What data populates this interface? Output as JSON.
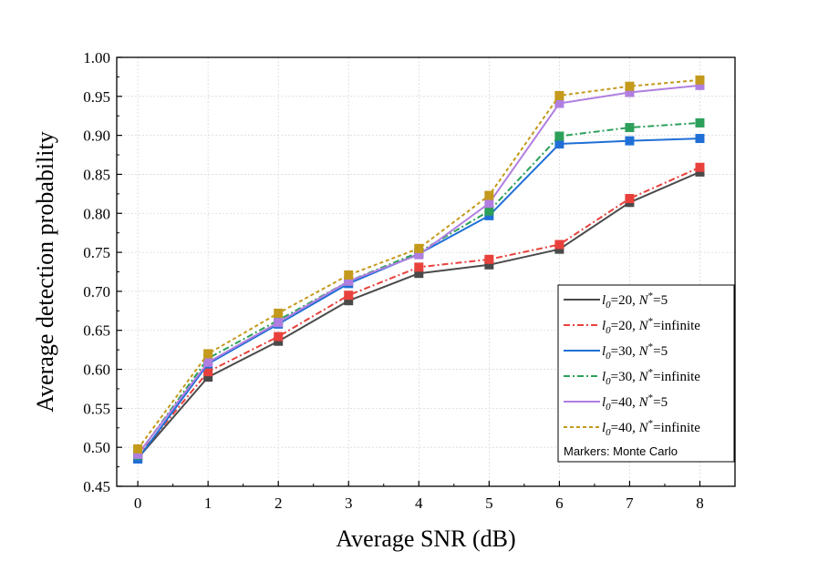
{
  "chart_data": {
    "type": "line",
    "xlabel": "Average SNR (dB)",
    "ylabel": "Average detection probability",
    "xlim": [
      -0.3,
      8.5
    ],
    "ylim": [
      0.45,
      1.0
    ],
    "xticks": [
      "0",
      "1",
      "2",
      "3",
      "4",
      "5",
      "6",
      "7",
      "8"
    ],
    "yticks": [
      "0.45",
      "0.50",
      "0.55",
      "0.60",
      "0.65",
      "0.70",
      "0.75",
      "0.80",
      "0.85",
      "0.90",
      "0.95",
      "1.00"
    ],
    "grid": true,
    "legend_position": "bottom-right",
    "x": [
      0,
      1,
      2,
      3,
      4,
      5,
      6,
      7,
      8
    ],
    "series": [
      {
        "name": "l0=20, N*=5",
        "prefix": "l",
        "sub": "0",
        "mid": "=20, ",
        "var": "N",
        "sup": "*",
        "suffix": "=5",
        "color": "#4a4a4a",
        "dash": "solid",
        "values": [
          0.486,
          0.59,
          0.636,
          0.688,
          0.723,
          0.734,
          0.754,
          0.814,
          0.853
        ]
      },
      {
        "name": "l0=20, N*=infinite",
        "prefix": "l",
        "sub": "0",
        "mid": "=20, ",
        "var": "N",
        "sup": "*",
        "suffix": "=infinite",
        "color": "#e8413c",
        "dash": "dashdot",
        "values": [
          0.488,
          0.597,
          0.642,
          0.695,
          0.731,
          0.741,
          0.76,
          0.819,
          0.859
        ]
      },
      {
        "name": "l0=30, N*=5",
        "prefix": "l",
        "sub": "0",
        "mid": "=30, ",
        "var": "N",
        "sup": "*",
        "suffix": "=5",
        "color": "#1f6fd6",
        "dash": "solid",
        "values": [
          0.485,
          0.607,
          0.658,
          0.71,
          0.748,
          0.797,
          0.889,
          0.893,
          0.896
        ]
      },
      {
        "name": "l0=30, N*=infinite",
        "prefix": "l",
        "sub": "0",
        "mid": "=30, ",
        "var": "N",
        "sup": "*",
        "suffix": "=infinite",
        "color": "#2ca05a",
        "dash": "dashdot",
        "values": [
          0.49,
          0.614,
          0.663,
          0.713,
          0.75,
          0.803,
          0.899,
          0.91,
          0.916
        ]
      },
      {
        "name": "l0=40, N*=5",
        "prefix": "l",
        "sub": "0",
        "mid": "=40, ",
        "var": "N",
        "sup": "*",
        "suffix": "=5",
        "color": "#b07ee0",
        "dash": "solid",
        "values": [
          0.491,
          0.609,
          0.66,
          0.713,
          0.747,
          0.813,
          0.941,
          0.955,
          0.964
        ]
      },
      {
        "name": "l0=40, N*=infinite",
        "prefix": "l",
        "sub": "0",
        "mid": "=40, ",
        "var": "N",
        "sup": "*",
        "suffix": "=infinite",
        "color": "#c49a1c",
        "dash": "dash",
        "values": [
          0.498,
          0.62,
          0.672,
          0.721,
          0.755,
          0.823,
          0.951,
          0.963,
          0.971
        ]
      }
    ],
    "legend_note": "Markers: Monte Carlo"
  }
}
